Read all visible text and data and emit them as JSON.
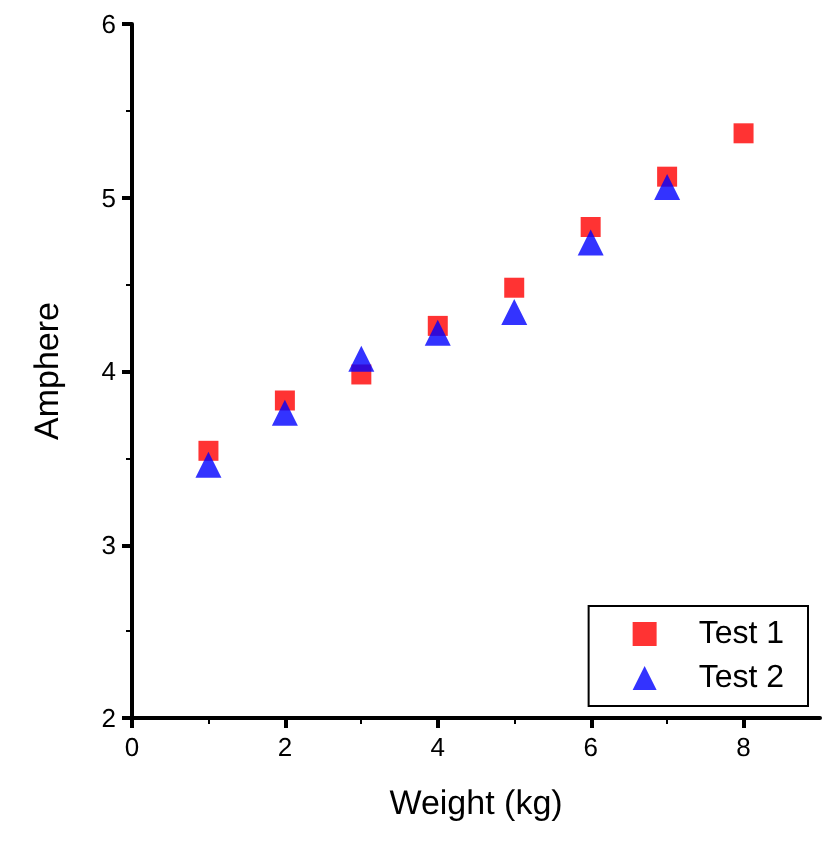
{
  "chart_data": {
    "type": "scatter",
    "xlabel": "Weight (kg)",
    "ylabel": "Amphere",
    "x": [
      1,
      2,
      3,
      4,
      5,
      6,
      7,
      8
    ],
    "series": [
      {
        "name": "Test 1",
        "color": "#ff0000",
        "marker": "square",
        "values": [
          3.54,
          3.83,
          3.98,
          4.26,
          4.48,
          4.83,
          5.12,
          5.37
        ]
      },
      {
        "name": "Test 2",
        "color": "#0000ff",
        "marker": "triangle",
        "values": [
          3.46,
          3.76,
          4.07,
          4.22,
          4.34,
          4.74,
          5.06,
          null
        ]
      }
    ],
    "xlim": [
      0,
      9
    ],
    "xticks": [
      0,
      2,
      4,
      6,
      8
    ],
    "ylim": [
      2,
      6
    ],
    "yticks": [
      2,
      3,
      4,
      5,
      6
    ],
    "grid": false,
    "legend": "bottom right"
  }
}
